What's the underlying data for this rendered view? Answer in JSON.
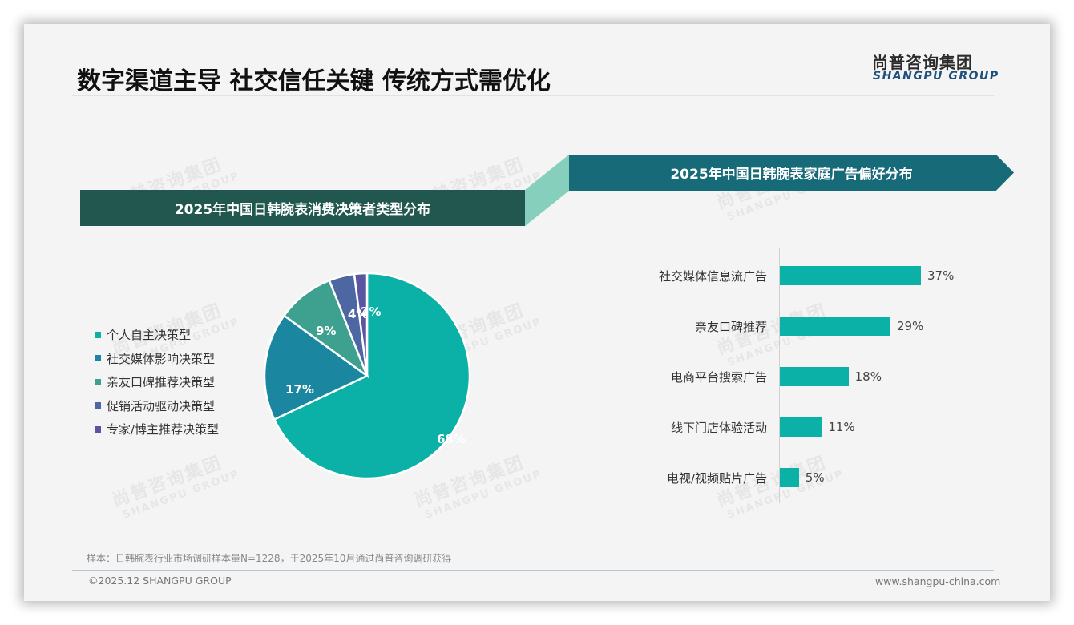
{
  "header": {
    "title": "数字渠道主导 社交信任关键 传统方式需优化",
    "logo_cn": "尚普咨询集团",
    "logo_en": "SHANGPU GROUP"
  },
  "watermark": {
    "cn": "尚普咨询集团",
    "en": "SHANGPU GROUP"
  },
  "left_panel": {
    "banner": "2025年中国日韩腕表消费决策者类型分布"
  },
  "right_panel": {
    "banner": "2025年中国日韩腕表家庭广告偏好分布"
  },
  "colors": {
    "banner_left": "#21574f",
    "banner_right": "#176a78",
    "connector": "#86cfbd",
    "bar": "#0bb1a6"
  },
  "chart_data": [
    {
      "type": "pie",
      "title": "2025年中国日韩腕表消费决策者类型分布",
      "categories": [
        "个人自主决策型",
        "社交媒体影响决策型",
        "亲友口碑推荐决策型",
        "促销活动驱动决策型",
        "专家/博主推荐决策型"
      ],
      "values": [
        68,
        17,
        9,
        4,
        2
      ],
      "labels": [
        "68%",
        "17%",
        "9%",
        "4%",
        "2%"
      ],
      "colors": [
        "#0bb1a6",
        "#1a86a0",
        "#3ea08e",
        "#4d67a3",
        "#5a55a0"
      ],
      "legend_position": "left",
      "start_angle": "12 o'clock, clockwise"
    },
    {
      "type": "bar",
      "orientation": "horizontal",
      "title": "2025年中国日韩腕表家庭广告偏好分布",
      "categories": [
        "社交媒体信息流广告",
        "亲友口碑推荐",
        "电商平台搜索广告",
        "线下门店体验活动",
        "电视/视频贴片广告"
      ],
      "values": [
        37,
        29,
        18,
        11,
        5
      ],
      "labels": [
        "37%",
        "29%",
        "18%",
        "11%",
        "5%"
      ],
      "unit": "%",
      "grid": false
    }
  ],
  "footer": {
    "note": "样本：日韩腕表行业市场调研样本量N=1228，于2025年10月通过尚普咨询调研获得",
    "copyright": "©2025.12 SHANGPU GROUP",
    "website": "www.shangpu-china.com"
  }
}
